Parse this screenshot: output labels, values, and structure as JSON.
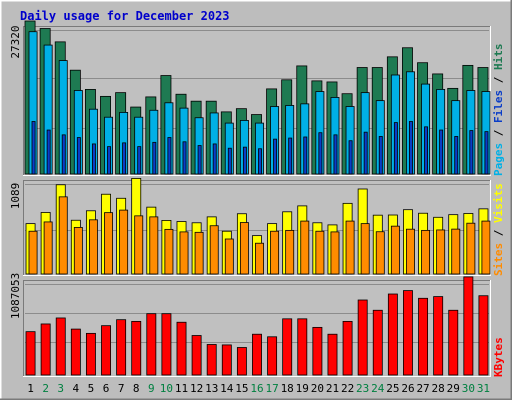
{
  "chart_data": [
    {
      "type": "bar",
      "title": "Daily usage for December 2023",
      "categories": [
        "1",
        "2",
        "3",
        "4",
        "5",
        "6",
        "7",
        "8",
        "9",
        "10",
        "11",
        "12",
        "13",
        "14",
        "15",
        "16",
        "17",
        "18",
        "19",
        "20",
        "21",
        "22",
        "23",
        "24",
        "25",
        "26",
        "27",
        "28",
        "29",
        "30",
        "31"
      ],
      "weekend_days": [
        "2",
        "3",
        "9",
        "10",
        "16",
        "17",
        "23",
        "24",
        "30",
        "31"
      ],
      "ytick": "27320",
      "ymax": 27320,
      "side_labels": [
        "Pages",
        "Files",
        "Hits"
      ],
      "series": [
        {
          "name": "Hits",
          "color": "#1e7a52",
          "values": [
            29000,
            27600,
            25100,
            19800,
            16200,
            14900,
            15600,
            12900,
            14800,
            18800,
            15300,
            14000,
            14000,
            12000,
            12600,
            11500,
            16300,
            18000,
            20600,
            17800,
            17600,
            15400,
            20300,
            20300,
            22300,
            24000,
            21200,
            19100,
            16400,
            20700,
            20300
          ]
        },
        {
          "name": "Files",
          "color": "#00b0e6",
          "values": [
            27000,
            24500,
            21600,
            16000,
            12500,
            11000,
            11900,
            11000,
            12300,
            13700,
            12700,
            10900,
            11800,
            9900,
            10400,
            9900,
            13000,
            13200,
            13500,
            15800,
            14700,
            13000,
            15600,
            14100,
            18900,
            19500,
            17200,
            16200,
            14100,
            16000,
            15800
          ]
        },
        {
          "name": "Pages",
          "color": "#0a3dc8",
          "values": [
            10200,
            8600,
            7700,
            7200,
            6000,
            5500,
            6200,
            5500,
            6300,
            7200,
            6400,
            5700,
            6000,
            5200,
            5400,
            5100,
            6900,
            7100,
            7300,
            8100,
            7700,
            6600,
            8200,
            7400,
            10000,
            10200,
            9200,
            8600,
            7400,
            8500,
            8300
          ]
        }
      ]
    },
    {
      "type": "bar",
      "ytick": "1089",
      "ymax": 1089,
      "side_labels": [
        "Sites",
        "Visits"
      ],
      "series": [
        {
          "name": "Visits",
          "color": "#ffff00",
          "values": [
            620,
            752,
            1080,
            660,
            772,
            968,
            920,
            1155,
            815,
            658,
            645,
            630,
            700,
            530,
            737,
            478,
            620,
            760,
            830,
            630,
            605,
            860,
            1030,
            720,
            722,
            785,
            743,
            695,
            726,
            740,
            795
          ]
        },
        {
          "name": "Sites",
          "color": "#ff8c00",
          "values": [
            530,
            640,
            937,
            575,
            665,
            750,
            780,
            712,
            700,
            552,
            522,
            517,
            595,
            438,
            633,
            388,
            530,
            540,
            650,
            530,
            522,
            650,
            620,
            524,
            590,
            554,
            540,
            545,
            555,
            625,
            650
          ]
        }
      ]
    },
    {
      "type": "bar",
      "ytick": "1087053",
      "ymax": 1087053,
      "side_labels": [
        "KBytes"
      ],
      "series": [
        {
          "name": "KBytes",
          "color": "#ff0000",
          "values": [
            530000,
            620000,
            690000,
            560000,
            510000,
            600000,
            670000,
            650000,
            740000,
            740000,
            640000,
            485000,
            380000,
            375000,
            345000,
            500000,
            470000,
            680000,
            680000,
            580000,
            500000,
            650000,
            900000,
            780000,
            970000,
            1010000,
            920000,
            940000,
            780000,
            1170000,
            950000
          ]
        }
      ]
    }
  ]
}
